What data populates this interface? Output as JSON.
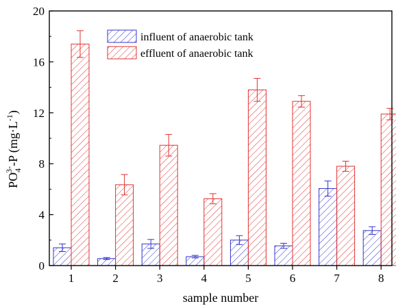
{
  "chart_data": {
    "type": "bar",
    "xlabel": "sample number",
    "ylabel": {
      "base": "PO",
      "sub": "4",
      "sup": "3-",
      "rest": "-P (mg·L",
      "rest_sup": "-1",
      "close": ")"
    },
    "ylim": [
      0,
      20
    ],
    "yticks": [
      "0",
      "4",
      "8",
      "12",
      "16",
      "20"
    ],
    "categories": [
      "1",
      "2",
      "3",
      "4",
      "5",
      "6",
      "7",
      "8"
    ],
    "legend_position": "top-center",
    "grid": false,
    "series": [
      {
        "name": "influent of anaerobic tank",
        "color": "#3333cc",
        "values": [
          1.4,
          0.55,
          1.7,
          0.7,
          2.0,
          1.55,
          6.05,
          2.75
        ],
        "errors": [
          0.3,
          0.08,
          0.35,
          0.1,
          0.35,
          0.2,
          0.6,
          0.3
        ]
      },
      {
        "name": "effluent of anaerobic tank",
        "color": "#e03030",
        "values": [
          17.4,
          6.35,
          9.45,
          5.25,
          13.8,
          12.9,
          7.8,
          11.9
        ],
        "errors": [
          1.05,
          0.8,
          0.85,
          0.4,
          0.9,
          0.45,
          0.4,
          0.45
        ]
      }
    ]
  }
}
